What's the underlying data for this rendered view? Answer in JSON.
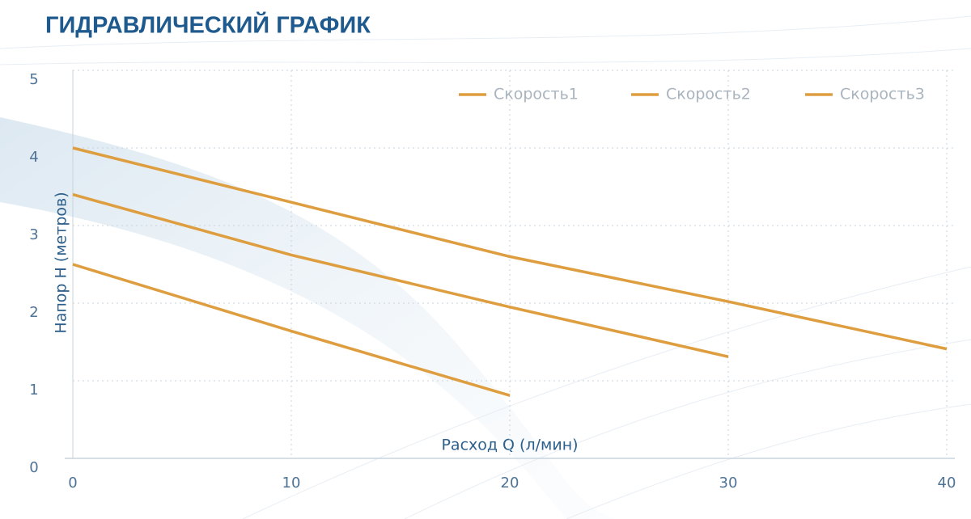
{
  "chart_data": {
    "type": "line",
    "title": "ГИДРАВЛИЧЕСКИЙ ГРАФИК",
    "x_label": "Расход Q (л/мин)",
    "y_label": "Напор H (метров)",
    "xlim": [
      0,
      40
    ],
    "xticks": [
      0,
      10,
      20,
      30,
      40
    ],
    "ylim": [
      0,
      5
    ],
    "yticks": [
      0,
      1,
      2,
      3,
      4,
      5
    ],
    "grid": true,
    "legend": "top-right",
    "series": [
      {
        "name": "Скорость1",
        "color": "#de9d3e",
        "x": [
          0,
          10,
          20,
          30,
          40
        ],
        "values": [
          4.0,
          3.3,
          2.6,
          2.02,
          1.41
        ]
      },
      {
        "name": "Скорость2",
        "color": "#de9d3e",
        "x": [
          0,
          10,
          20,
          30
        ],
        "values": [
          3.4,
          2.62,
          1.95,
          1.31
        ]
      },
      {
        "name": "Скорость3",
        "color": "#de9d3e",
        "x": [
          0,
          10,
          20
        ],
        "values": [
          2.5,
          1.64,
          0.81
        ]
      }
    ]
  }
}
